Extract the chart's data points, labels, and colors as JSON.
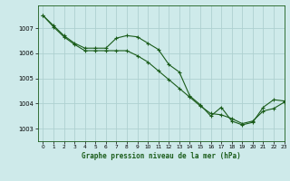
{
  "title": "Graphe pression niveau de la mer (hPa)",
  "background_color": "#ceeaea",
  "grid_color": "#aed0d0",
  "line_color": "#1a5c1a",
  "xlim": [
    -0.5,
    23
  ],
  "ylim": [
    1002.5,
    1007.9
  ],
  "yticks": [
    1003,
    1004,
    1005,
    1006,
    1007
  ],
  "xticks": [
    0,
    1,
    2,
    3,
    4,
    5,
    6,
    7,
    8,
    9,
    10,
    11,
    12,
    13,
    14,
    15,
    16,
    17,
    18,
    19,
    20,
    21,
    22,
    23
  ],
  "series1_x": [
    0,
    1,
    2,
    3,
    4,
    5,
    6,
    7,
    8,
    9,
    10,
    11,
    12,
    13,
    14,
    15,
    16,
    17,
    18,
    19,
    20,
    21,
    22,
    23
  ],
  "series1_y": [
    1007.5,
    1007.1,
    1006.7,
    1006.4,
    1006.2,
    1006.2,
    1006.2,
    1006.6,
    1006.7,
    1006.65,
    1006.4,
    1006.15,
    1005.55,
    1005.25,
    1004.3,
    1003.95,
    1003.5,
    1003.85,
    1003.3,
    1003.15,
    1003.25,
    1003.85,
    1004.15,
    1004.1
  ],
  "series2_x": [
    0,
    1,
    2,
    3,
    4,
    5,
    6,
    7,
    8,
    9,
    10,
    11,
    12,
    13,
    14,
    15,
    16,
    17,
    18,
    19,
    20,
    21,
    22,
    23
  ],
  "series2_y": [
    1007.5,
    1007.05,
    1006.65,
    1006.35,
    1006.1,
    1006.1,
    1006.1,
    1006.1,
    1006.1,
    1005.9,
    1005.65,
    1005.3,
    1004.95,
    1004.6,
    1004.25,
    1003.9,
    1003.6,
    1003.55,
    1003.4,
    1003.2,
    1003.3,
    1003.7,
    1003.8,
    1004.05
  ],
  "figwidth": 3.2,
  "figheight": 2.0,
  "dpi": 100
}
